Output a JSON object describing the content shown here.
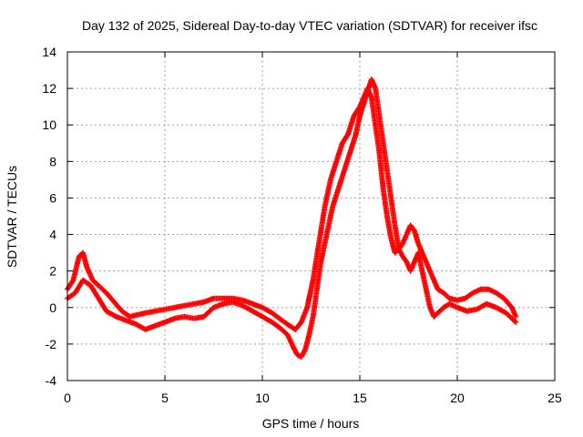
{
  "chart_data": {
    "type": "scatter",
    "title": "Day 132 of 2025, Sidereal Day-to-day VTEC variation (SDTVAR) for receiver ifsc",
    "xlabel": "GPS time / hours",
    "ylabel": "SDTVAR / TECUs",
    "xlim": [
      0,
      25
    ],
    "ylim": [
      -4,
      14
    ],
    "xticks": [
      "0",
      "5",
      "10",
      "15",
      "20",
      "25"
    ],
    "yticks": [
      "-4",
      "-2",
      "0",
      "2",
      "4",
      "6",
      "8",
      "10",
      "12",
      "14"
    ],
    "grid": true,
    "marker": "plus",
    "series": [
      {
        "name": "SDTVAR",
        "color": "#ff0000",
        "tracks": [
          {
            "x": [
              0.0,
              0.3,
              0.6,
              0.8,
              1.0,
              1.3,
              1.6,
              2.0,
              2.4,
              2.8,
              3.2,
              3.6,
              4.0,
              4.5,
              5.0,
              5.5,
              6.0,
              6.5,
              7.0,
              7.5,
              8.0,
              8.5,
              9.0,
              9.5,
              10.0,
              10.5,
              11.0,
              11.4,
              11.7,
              12.0,
              12.3,
              12.6,
              12.9,
              13.2,
              13.5,
              13.8,
              14.1,
              14.4,
              14.7,
              15.0,
              15.2,
              15.4,
              15.6,
              15.8,
              16.0,
              16.2,
              16.4,
              16.6,
              16.8,
              17.0,
              17.2,
              17.4,
              17.6,
              17.8,
              18.0,
              18.2,
              18.4,
              18.6,
              18.8,
              19.0,
              19.3,
              19.6,
              20.0,
              20.4,
              20.8,
              21.2,
              21.6,
              22.0,
              22.4,
              22.8,
              23.0
            ],
            "y": [
              1.0,
              1.5,
              2.8,
              3.0,
              2.2,
              1.5,
              1.2,
              0.8,
              0.3,
              -0.2,
              -0.5,
              -0.4,
              -0.3,
              -0.2,
              -0.1,
              0.0,
              0.1,
              0.2,
              0.3,
              0.5,
              0.5,
              0.5,
              0.4,
              0.2,
              0.0,
              -0.3,
              -0.7,
              -1.0,
              -1.2,
              -0.8,
              0.0,
              1.5,
              3.5,
              5.5,
              7.0,
              8.0,
              9.0,
              9.5,
              10.5,
              11.0,
              11.5,
              12.0,
              11.5,
              10.0,
              8.5,
              6.5,
              5.0,
              3.8,
              3.0,
              3.2,
              3.5,
              4.0,
              4.5,
              4.2,
              3.5,
              3.0,
              2.5,
              2.0,
              1.5,
              1.0,
              0.8,
              0.5,
              0.4,
              0.5,
              0.8,
              1.0,
              1.0,
              0.8,
              0.5,
              0.0,
              -0.5
            ]
          },
          {
            "x": [
              0.0,
              0.4,
              0.8,
              1.2,
              1.6,
              2.0,
              2.5,
              3.0,
              3.5,
              4.0,
              4.5,
              5.0,
              5.5,
              6.0,
              6.5,
              7.0,
              7.5,
              8.0,
              8.5,
              9.0,
              9.5,
              10.0,
              10.5,
              11.0,
              11.3,
              11.6,
              11.8,
              12.0,
              12.2,
              12.4,
              12.6,
              12.8,
              13.0,
              13.3,
              13.6,
              13.9,
              14.2,
              14.5,
              14.8,
              15.0,
              15.3,
              15.6,
              15.8,
              16.0,
              16.2,
              16.4,
              16.6,
              16.8,
              17.0,
              17.2,
              17.4,
              17.6,
              17.8,
              18.0,
              18.2,
              18.4,
              18.6,
              18.8,
              19.0,
              19.3,
              19.6,
              20.0,
              20.5,
              21.0,
              21.5,
              22.0,
              22.5,
              23.0
            ],
            "y": [
              0.5,
              0.8,
              1.5,
              1.2,
              0.5,
              -0.2,
              -0.5,
              -0.7,
              -0.9,
              -1.2,
              -1.0,
              -0.8,
              -0.6,
              -0.5,
              -0.6,
              -0.5,
              0.0,
              0.2,
              0.3,
              0.1,
              -0.2,
              -0.5,
              -0.8,
              -1.2,
              -1.5,
              -2.2,
              -2.6,
              -2.7,
              -2.3,
              -1.5,
              -0.5,
              1.0,
              2.5,
              4.0,
              5.5,
              6.5,
              7.5,
              8.5,
              9.5,
              10.5,
              11.5,
              12.5,
              12.0,
              10.5,
              9.0,
              7.5,
              6.0,
              4.5,
              3.2,
              2.8,
              2.5,
              2.0,
              2.5,
              3.0,
              2.0,
              1.0,
              0.0,
              -0.5,
              -0.3,
              0.0,
              0.2,
              0.0,
              -0.2,
              -0.1,
              0.2,
              0.0,
              -0.3,
              -0.8
            ]
          }
        ]
      }
    ]
  }
}
